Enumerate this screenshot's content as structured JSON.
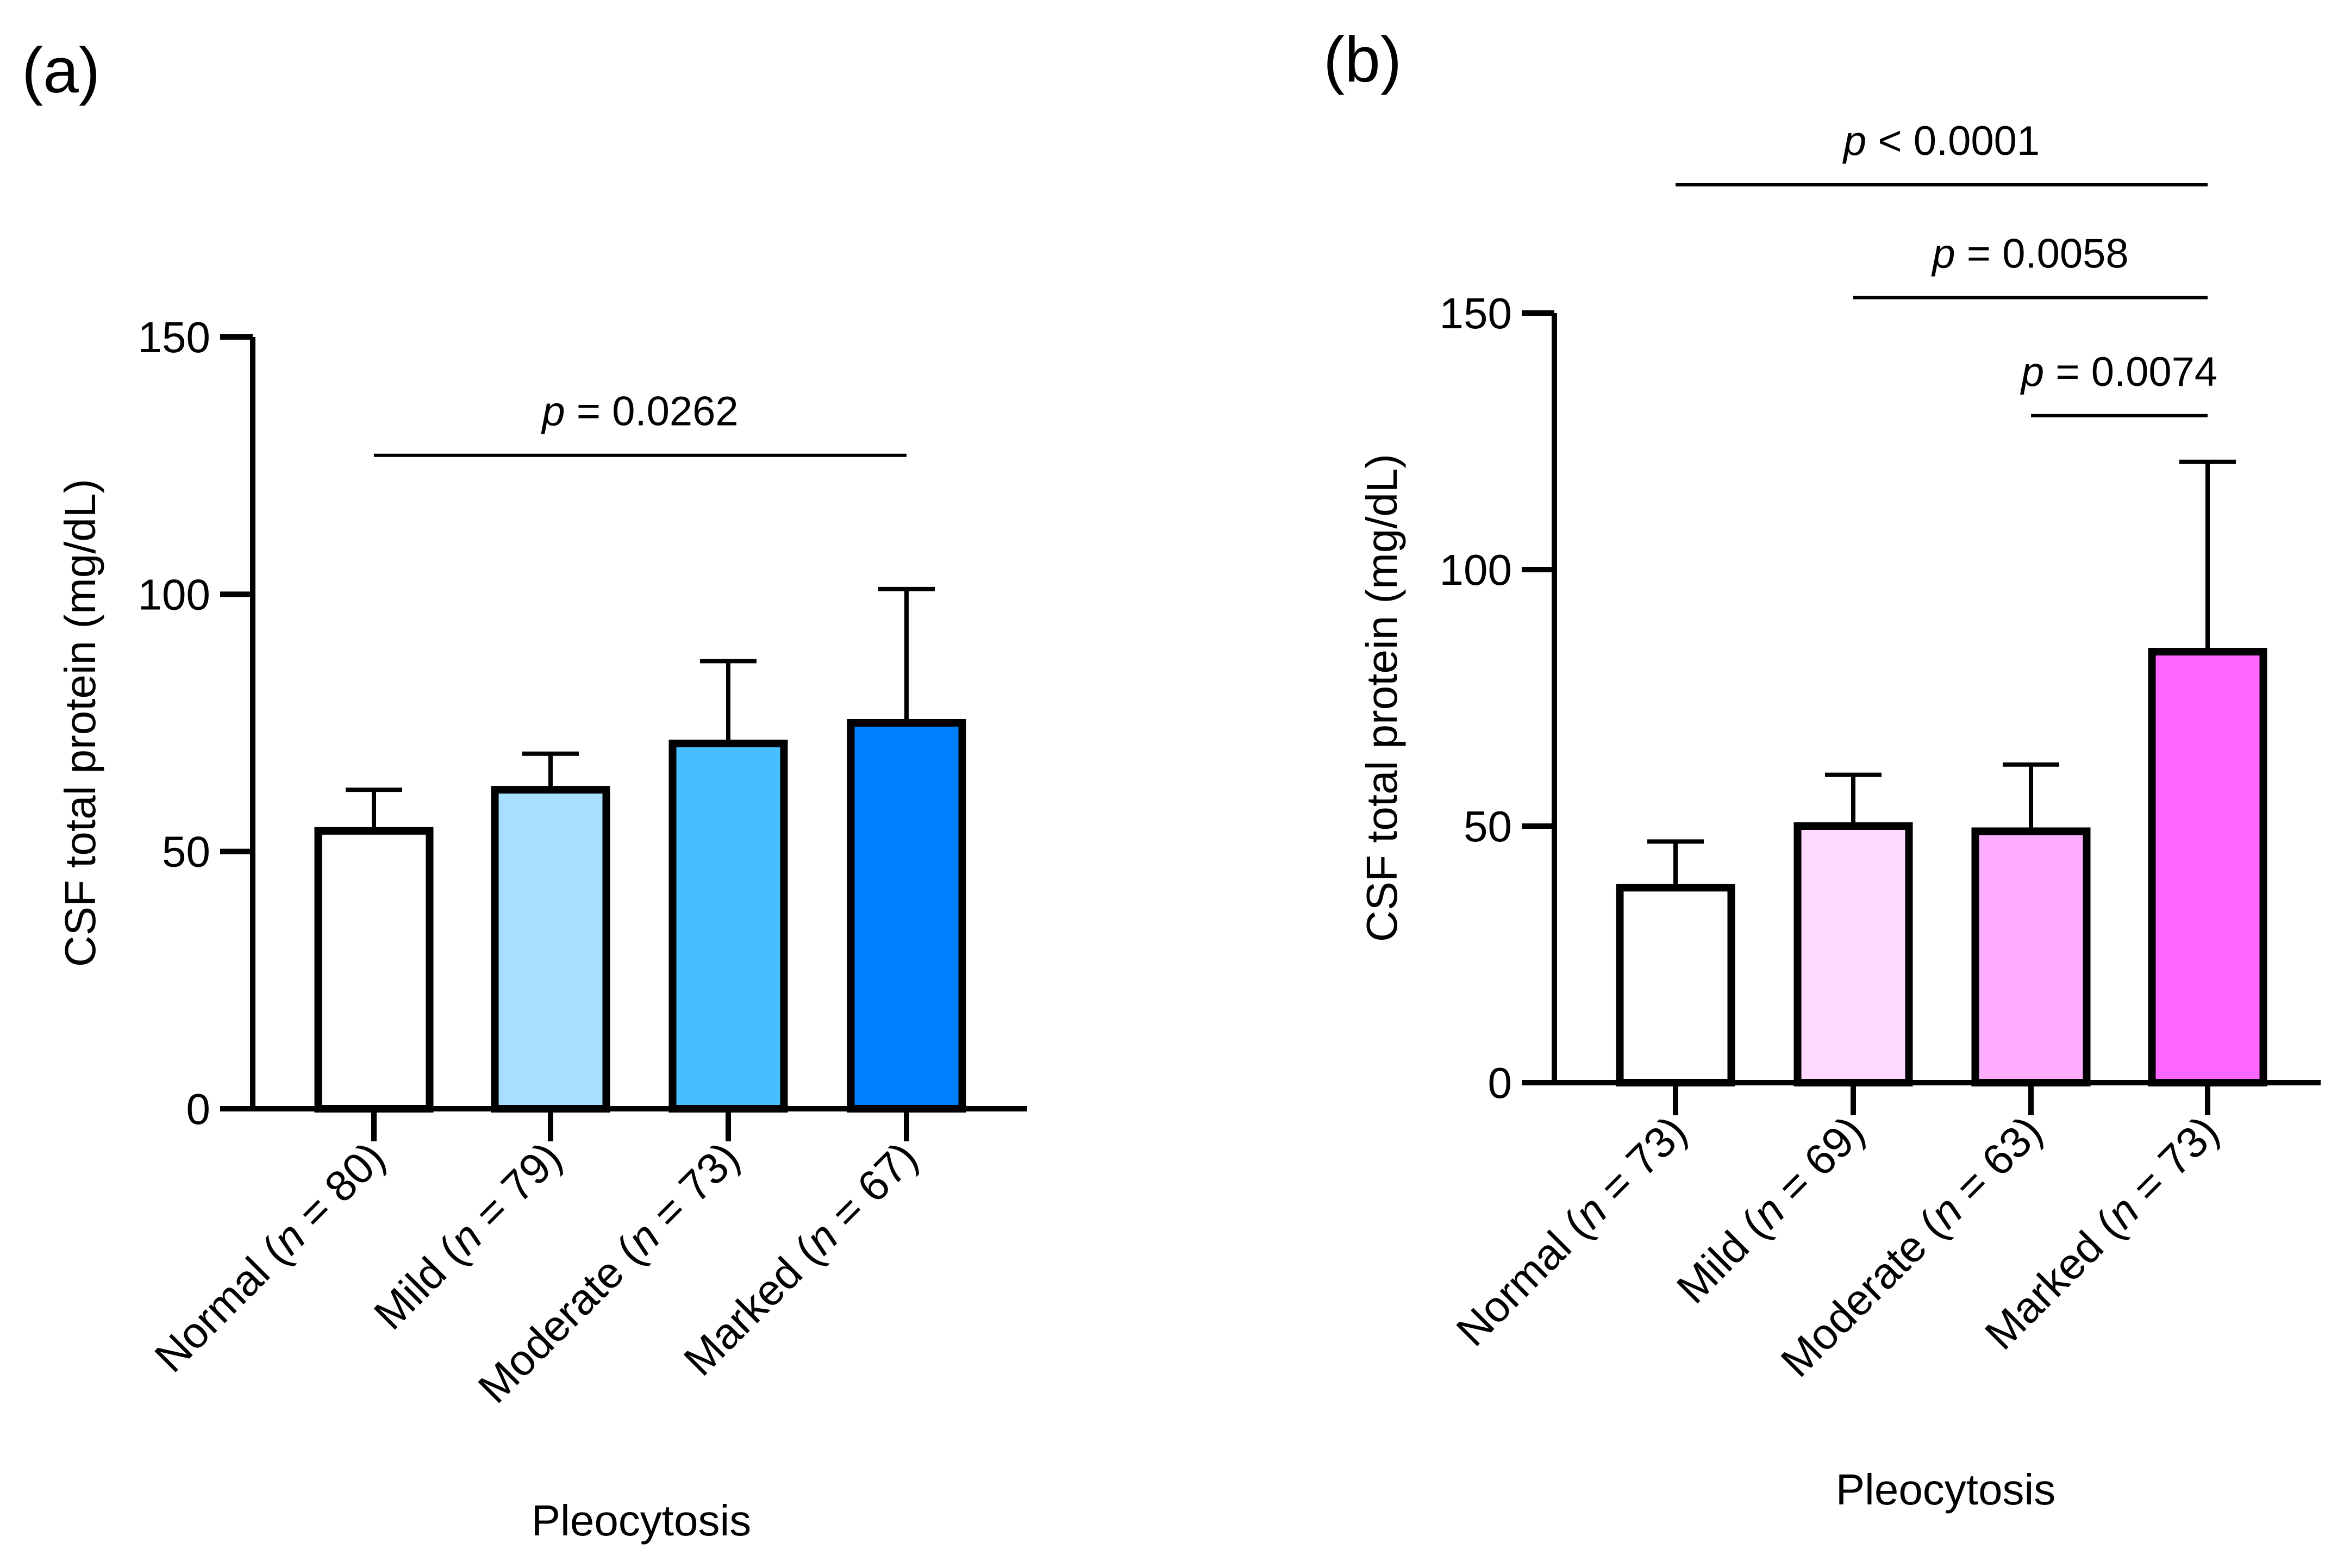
{
  "chart_data": [
    {
      "panel_label": "(a)",
      "type": "bar",
      "title": "",
      "xlabel": "Pleocytosis",
      "ylabel": "CSF total protein (mg/dL)",
      "ylim": [
        0,
        150
      ],
      "yticks": [
        0,
        50,
        100,
        150
      ],
      "categories": [
        {
          "label": "Normal",
          "n": "80"
        },
        {
          "label": "Mild",
          "n": "79"
        },
        {
          "label": "Moderate",
          "n": "73"
        },
        {
          "label": "Marked",
          "n": "67"
        }
      ],
      "values": [
        54,
        62,
        71,
        75
      ],
      "errors": [
        62,
        69,
        87,
        101
      ],
      "colors": [
        "#ffffff",
        "#a8dfff",
        "#47bfff",
        "#0080ff"
      ],
      "comparisons": [
        {
          "from": 0,
          "to": 3,
          "level": 127,
          "label": "= 0.0262"
        }
      ]
    },
    {
      "panel_label": "(b)",
      "type": "bar",
      "title": "",
      "xlabel": "Pleocytosis",
      "ylabel": "CSF total protein (mg/dL)",
      "ylim": [
        0,
        150
      ],
      "yticks": [
        0,
        50,
        100,
        150
      ],
      "categories": [
        {
          "label": "Normal",
          "n": "73"
        },
        {
          "label": "Mild",
          "n": "69"
        },
        {
          "label": "Moderate",
          "n": "63"
        },
        {
          "label": "Marked",
          "n": "73"
        }
      ],
      "values": [
        38,
        50,
        49,
        84
      ],
      "errors": [
        47,
        60,
        62,
        121
      ],
      "colors": [
        "#ffffff",
        "#ffd9ff",
        "#ffadff",
        "#ff66ff"
      ],
      "comparisons": [
        {
          "from": 0,
          "to": 3,
          "level": 175,
          "label": "< 0.0001"
        },
        {
          "from": 1,
          "to": 3,
          "level": 153,
          "label": "= 0.0058"
        },
        {
          "from": 2,
          "to": 3,
          "level": 130,
          "label": "= 0.0074"
        }
      ]
    }
  ],
  "italic_p": "p",
  "italic_n": "n"
}
